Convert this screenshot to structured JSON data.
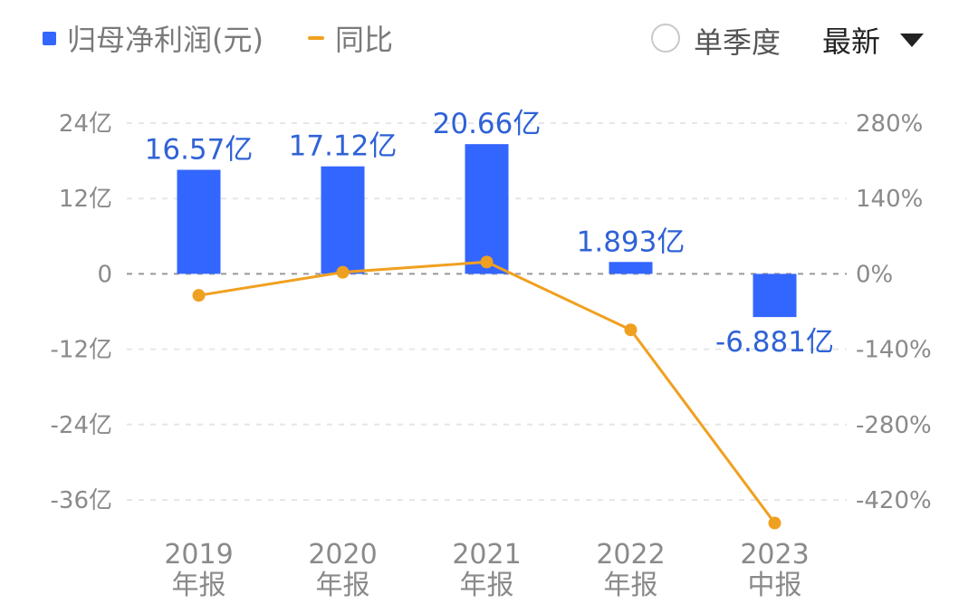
{
  "legend": {
    "bar_label": "归母净利润(元)",
    "line_label": "同比",
    "radio_label": "单季度",
    "dropdown_value": "最新"
  },
  "colors": {
    "bar": "#3366ff",
    "line": "#f0a020",
    "label": "#2f62d6",
    "grid": "#e6e6e6",
    "zero_line": "#999999"
  },
  "chart_data": {
    "type": "bar",
    "categories": [
      "2019\n年报",
      "2020\n年报",
      "2021\n年报",
      "2022\n年报",
      "2023\n中报"
    ],
    "series": [
      {
        "type": "bar",
        "axis": "left",
        "values": [
          16.57,
          17.12,
          20.66,
          1.893,
          -6.881
        ],
        "labels": [
          "16.57亿",
          "17.12亿",
          "20.66亿",
          "1.893亿",
          "-6.881亿"
        ]
      },
      {
        "type": "line",
        "axis": "right",
        "values": [
          -40,
          3,
          22,
          -104,
          -463
        ]
      }
    ],
    "y_left": {
      "ticks": [
        24,
        12,
        0,
        -12,
        -24,
        -36
      ],
      "tick_labels": [
        "24亿",
        "12亿",
        "0",
        "-12亿",
        "-24亿",
        "-36亿"
      ],
      "range": [
        -36,
        24
      ]
    },
    "y_right": {
      "ticks": [
        280,
        140,
        0,
        -140,
        -280,
        -420
      ],
      "tick_labels": [
        "280%",
        "140%",
        "0%",
        "-140%",
        "-280%",
        "-420%"
      ],
      "range": [
        -420,
        280
      ]
    },
    "grid": true
  }
}
